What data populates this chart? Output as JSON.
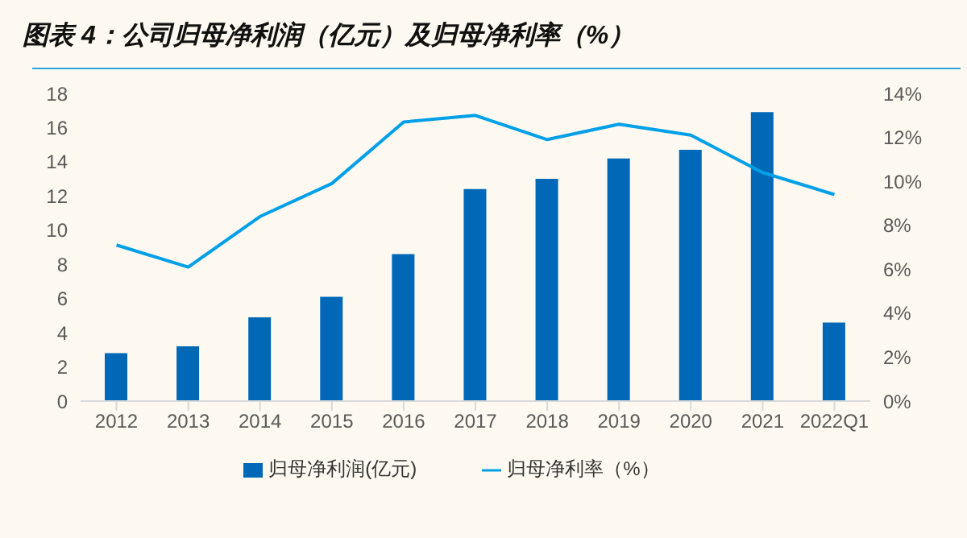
{
  "chart_data": {
    "type": "bar",
    "title": "图表 4：公司归母净利润（亿元）及归母净利率（%）",
    "categories": [
      "2012",
      "2013",
      "2014",
      "2015",
      "2016",
      "2017",
      "2018",
      "2019",
      "2020",
      "2021",
      "2022Q1"
    ],
    "series": [
      {
        "name": "归母净利润(亿元)",
        "color": "#0068b7",
        "values": [
          2.8,
          3.2,
          4.9,
          6.1,
          8.6,
          12.4,
          13.0,
          14.2,
          14.7,
          16.9,
          4.6
        ]
      },
      {
        "name": "归母净利率（%）",
        "type": "line",
        "axis": "y2",
        "color": "#00a0e9",
        "values": [
          7.1,
          6.1,
          8.4,
          9.9,
          12.7,
          13.0,
          11.9,
          12.6,
          12.1,
          10.4,
          9.4
        ]
      }
    ],
    "ylim": [
      0,
      18
    ],
    "yticks": [
      0,
      2,
      4,
      6,
      8,
      10,
      12,
      14,
      16,
      18
    ],
    "y2lim": [
      0,
      14
    ],
    "y2ticks": [
      {
        "value": 0,
        "label": "0%"
      },
      {
        "value": 2,
        "label": "2%"
      },
      {
        "value": 4,
        "label": "4%"
      },
      {
        "value": 6,
        "label": "6%"
      },
      {
        "value": 8,
        "label": "8%"
      },
      {
        "value": 10,
        "label": "10%"
      },
      {
        "value": 12,
        "label": "12%"
      },
      {
        "value": 14,
        "label": "14%"
      }
    ],
    "grid": false,
    "legend": "bottom",
    "marker": "none",
    "line_style": "solid"
  }
}
